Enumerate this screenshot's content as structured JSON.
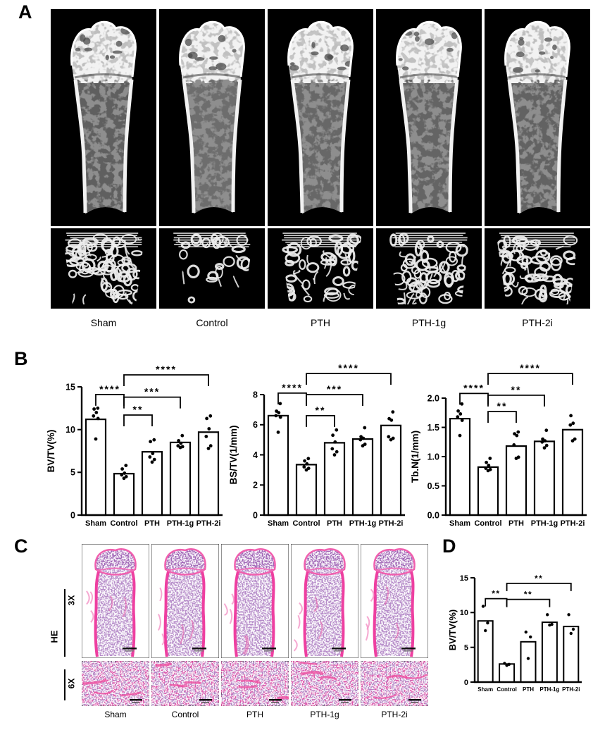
{
  "figure": {
    "panel_a": {
      "label": "A",
      "group_labels": [
        "Sham",
        "Control",
        "PTH",
        "PTH-1g",
        "PTH-2i"
      ]
    },
    "panel_b": {
      "label": "B"
    },
    "panel_c": {
      "label": "C",
      "stain_label": "HE",
      "magnification_labels": [
        "3X",
        "6X"
      ],
      "group_labels": [
        "Sham",
        "Control",
        "PTH",
        "PTH-1g",
        "PTH-2i"
      ]
    },
    "panel_d": {
      "label": "D"
    },
    "appearance": {
      "trabecular_density": [
        0.95,
        0.35,
        0.6,
        0.72,
        0.85
      ],
      "ct_colors": {
        "background": "#000000",
        "bone_gray": "#8e8e8e",
        "cortical_white": "#f2f2f2"
      },
      "hist_colors": {
        "background": "#ffffff",
        "marrow": "#b68cc9",
        "epiphysis": "#a066b6",
        "cortical_pink": "#ee3fa0"
      }
    }
  },
  "chart_data": [
    {
      "panel": "B",
      "name": "bv-tv",
      "type": "bar",
      "title": "",
      "xlabel": "",
      "ylabel": "BV/TV(%)",
      "categories": [
        "Sham",
        "Control",
        "PTH",
        "PTH-1g",
        "PTH-2i"
      ],
      "values": [
        11.2,
        4.85,
        7.4,
        8.5,
        9.7
      ],
      "points": [
        [
          8.9,
          11.3,
          11.6,
          12.0,
          12.4,
          12.5
        ],
        [
          4.3,
          4.5,
          4.7,
          4.9,
          5.4,
          5.8
        ],
        [
          6.2,
          6.5,
          6.8,
          7.2,
          8.6,
          8.8
        ],
        [
          7.9,
          8.0,
          8.1,
          8.4,
          8.7,
          9.3
        ],
        [
          7.8,
          8.1,
          9.2,
          10.1,
          11.3,
          11.6
        ]
      ],
      "ylim": [
        0,
        15
      ],
      "yticks": [
        0,
        5,
        10,
        15
      ],
      "ytick_labels": [
        "0",
        "5",
        "10",
        "15"
      ],
      "grid": false,
      "legend": "none",
      "brackets": [
        {
          "from": 0,
          "to": 1,
          "y": 14.1,
          "label": "****"
        },
        {
          "from": 1,
          "to": 2,
          "y": 11.7,
          "label": "**"
        },
        {
          "from": 1,
          "to": 3,
          "y": 13.8,
          "label": "***"
        },
        {
          "from": 1,
          "to": 4,
          "y": 16.4,
          "label": "****"
        }
      ]
    },
    {
      "panel": "B",
      "name": "bs-tv",
      "type": "bar",
      "title": "",
      "xlabel": "",
      "ylabel": "BS/TV(1/mm)",
      "categories": [
        "Sham",
        "Control",
        "PTH",
        "PTH-1g",
        "PTH-2i"
      ],
      "values": [
        6.6,
        3.35,
        4.8,
        5.05,
        5.95
      ],
      "points": [
        [
          5.5,
          6.5,
          6.6,
          6.8,
          6.9,
          7.4
        ],
        [
          3.0,
          3.1,
          3.2,
          3.4,
          3.6,
          3.75
        ],
        [
          4.0,
          4.2,
          4.4,
          4.85,
          5.3,
          5.65
        ],
        [
          4.6,
          4.7,
          5.0,
          5.1,
          5.2,
          5.8
        ],
        [
          5.0,
          5.1,
          5.2,
          6.3,
          6.4,
          6.85
        ]
      ],
      "ylim": [
        0,
        8
      ],
      "yticks": [
        0,
        2,
        4,
        6,
        8
      ],
      "ytick_labels": [
        "0",
        "2",
        "4",
        "6",
        "8"
      ],
      "grid": false,
      "legend": "none",
      "brackets": [
        {
          "from": 0,
          "to": 1,
          "y": 8.1,
          "label": "****"
        },
        {
          "from": 1,
          "to": 2,
          "y": 6.6,
          "label": "**"
        },
        {
          "from": 1,
          "to": 3,
          "y": 8.0,
          "label": "***"
        },
        {
          "from": 1,
          "to": 4,
          "y": 9.4,
          "label": "****"
        }
      ]
    },
    {
      "panel": "B",
      "name": "tb-n",
      "type": "bar",
      "title": "",
      "xlabel": "",
      "ylabel": "Tb.N(1/mm)",
      "categories": [
        "Sham",
        "Control",
        "PTH",
        "PTH-1g",
        "PTH-2i"
      ],
      "values": [
        1.65,
        0.82,
        1.18,
        1.26,
        1.46
      ],
      "points": [
        [
          1.36,
          1.62,
          1.68,
          1.73,
          1.78,
          1.9
        ],
        [
          0.76,
          0.78,
          0.8,
          0.85,
          0.9,
          0.97
        ],
        [
          0.97,
          0.99,
          1.2,
          1.36,
          1.39,
          1.42
        ],
        [
          1.15,
          1.19,
          1.25,
          1.27,
          1.3,
          1.45
        ],
        [
          1.27,
          1.3,
          1.54,
          1.57,
          1.7
        ]
      ],
      "ylim": [
        0,
        2
      ],
      "yticks": [
        0,
        0.5,
        1,
        1.5,
        2
      ],
      "ytick_labels": [
        "0.0",
        "0.5",
        "1.0",
        "1.5",
        "2.0"
      ],
      "grid": false,
      "legend": "none",
      "brackets": [
        {
          "from": 0,
          "to": 1,
          "y": 2.08,
          "label": "****"
        },
        {
          "from": 1,
          "to": 2,
          "y": 1.77,
          "label": "**"
        },
        {
          "from": 1,
          "to": 3,
          "y": 2.05,
          "label": "**"
        },
        {
          "from": 1,
          "to": 4,
          "y": 2.42,
          "label": "****"
        }
      ]
    },
    {
      "panel": "D",
      "name": "bv-tv-he",
      "type": "bar",
      "title": "",
      "xlabel": "",
      "ylabel": "BV/TV(%)",
      "categories": [
        "Sham",
        "Control",
        "PTH",
        "PTH-1g",
        "PTH-2i"
      ],
      "values": [
        8.8,
        2.6,
        5.8,
        8.6,
        8.0
      ],
      "points": [
        [
          7.4,
          8.5,
          10.9
        ],
        [
          2.4,
          2.55,
          2.7
        ],
        [
          3.4,
          6.5,
          7.2
        ],
        [
          8.2,
          8.3,
          9.7
        ],
        [
          7.0,
          7.6,
          9.7
        ]
      ],
      "ylim": [
        0,
        15
      ],
      "yticks": [
        0,
        5,
        10,
        15
      ],
      "ytick_labels": [
        "0",
        "5",
        "10",
        "15"
      ],
      "grid": false,
      "legend": "none",
      "brackets": [
        {
          "from": 0,
          "to": 1,
          "y": 12.0,
          "label": "**"
        },
        {
          "from": 1,
          "to": 3,
          "y": 11.9,
          "label": "**"
        },
        {
          "from": 1,
          "to": 4,
          "y": 14.2,
          "label": "**"
        }
      ]
    }
  ]
}
